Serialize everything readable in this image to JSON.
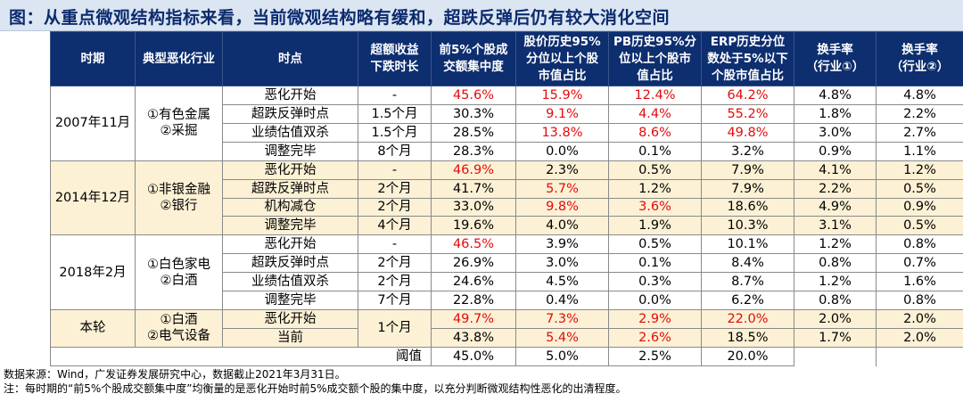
{
  "title": "图：从重点微观结构指标来看，当前微观结构略有缓和，超跌反弹后仍有较大消化空间",
  "headers": {
    "period": "时期",
    "industry": "典型恶化行业",
    "time_point": "时点",
    "excess_decline": [
      "超额收益",
      "下跌时长"
    ],
    "top5": [
      "前5%个股成",
      "交额集中度"
    ],
    "price_hist": [
      "股价历史95%",
      "分位以上个股",
      "市值占比"
    ],
    "pb_hist": [
      "PB历史95%分",
      "位以上个股市",
      "值占比"
    ],
    "erp_hist": [
      "ERP历史分位",
      "数处于5%以下",
      "个股市值占比"
    ],
    "turnover1": [
      "换手率",
      "（行业①）"
    ],
    "turnover2": [
      "换手率",
      "（行业②）"
    ]
  },
  "groups": [
    {
      "period": "2007年11月",
      "industries": [
        "①有色金属",
        "②采掘"
      ],
      "rows": [
        {
          "time_point": "恶化开始",
          "duration": "-",
          "top5": "45.6%",
          "price": "15.9%",
          "pb": "12.4%",
          "erp": "64.2%",
          "t1": "4.8%",
          "t2": "4.8%"
        },
        {
          "time_point": "超跌反弹时点",
          "duration": "1.5个月",
          "top5": "30.3%",
          "price": "9.1%",
          "pb": "4.4%",
          "erp": "55.2%",
          "t1": "1.8%",
          "t2": "2.2%"
        },
        {
          "time_point": "业绩估值双杀",
          "duration": "1.5个月",
          "top5": "28.5%",
          "price": "13.8%",
          "pb": "8.6%",
          "erp": "49.8%",
          "t1": "3.0%",
          "t2": "2.7%"
        },
        {
          "time_point": "调整完毕",
          "duration": "8个月",
          "top5": "28.3%",
          "price": "0.0%",
          "pb": "0.1%",
          "erp": "3.2%",
          "t1": "0.9%",
          "t2": "1.1%"
        }
      ]
    },
    {
      "period": "2014年12月",
      "industries": [
        "①非银金融",
        "②银行"
      ],
      "rows": [
        {
          "time_point": "恶化开始",
          "duration": "-",
          "top5": "46.9%",
          "price": "2.3%",
          "pb": "0.5%",
          "erp": "7.9%",
          "t1": "4.1%",
          "t2": "1.2%"
        },
        {
          "time_point": "超跌反弹时点",
          "duration": "2个月",
          "top5": "41.7%",
          "price": "5.7%",
          "pb": "1.2%",
          "erp": "7.9%",
          "t1": "2.2%",
          "t2": "0.5%"
        },
        {
          "time_point": "机构减仓",
          "duration": "2个月",
          "top5": "33.0%",
          "price": "9.8%",
          "pb": "3.6%",
          "erp": "18.6%",
          "t1": "4.9%",
          "t2": "0.9%"
        },
        {
          "time_point": "调整完毕",
          "duration": "4个月",
          "top5": "19.6%",
          "price": "4.0%",
          "pb": "1.9%",
          "erp": "10.3%",
          "t1": "3.1%",
          "t2": "0.5%"
        }
      ]
    },
    {
      "period": "2018年2月",
      "industries": [
        "①白色家电",
        "②白酒"
      ],
      "rows": [
        {
          "time_point": "恶化开始",
          "duration": "-",
          "top5": "46.5%",
          "price": "3.9%",
          "pb": "0.5%",
          "erp": "10.1%",
          "t1": "1.2%",
          "t2": "0.8%"
        },
        {
          "time_point": "超跌反弹时点",
          "duration": "2个月",
          "top5": "26.9%",
          "price": "3.0%",
          "pb": "0.1%",
          "erp": "8.4%",
          "t1": "0.8%",
          "t2": "0.7%"
        },
        {
          "time_point": "业绩估值双杀",
          "duration": "2个月",
          "top5": "24.6%",
          "price": "4.5%",
          "pb": "0.3%",
          "erp": "8.7%",
          "t1": "1.2%",
          "t2": "1.6%"
        },
        {
          "time_point": "调整完毕",
          "duration": "7个月",
          "top5": "22.8%",
          "price": "0.4%",
          "pb": "0.0%",
          "erp": "6.2%",
          "t1": "0.8%",
          "t2": "0.8%"
        }
      ]
    },
    {
      "period": "本轮",
      "industries": [
        "①白酒",
        "②电气设备"
      ],
      "duration_merged": "1个月",
      "rows": [
        {
          "time_point": "恶化开始",
          "top5": "49.7%",
          "price": "7.3%",
          "pb": "2.9%",
          "erp": "22.0%",
          "t1": "2.0%",
          "t2": "2.0%"
        },
        {
          "time_point": "当前",
          "top5": "43.8%",
          "price": "5.4%",
          "pb": "2.6%",
          "erp": "18.5%",
          "t1": "1.7%",
          "t2": "2.0%"
        }
      ]
    }
  ],
  "threshold": {
    "label": "阈值",
    "top5": "45.0%",
    "price": "5.0%",
    "pb": "2.5%",
    "erp": "20.0%"
  },
  "footnotes": [
    "数据来源：Wind，广发证券发展研究中心，数据截止2021年3月31日。",
    "注：每时期的“前5%个股成交额集中度”均衡量的是恶化开始时前5%成交额个股的集中度，以充分判断微观结构性恶化的出清程度。"
  ],
  "colors": {
    "header_bg": "#0d2e6f",
    "title_bg": "#dbe6f2",
    "title_text": "#0c2a6e",
    "shade": "#fcf1d5",
    "alert": "#e30b0b"
  }
}
